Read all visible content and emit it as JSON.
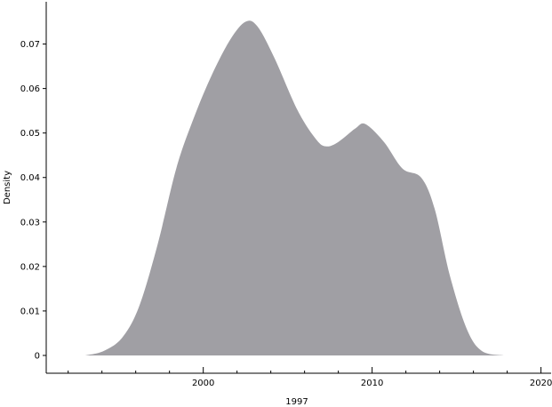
{
  "chart_data": {
    "type": "area",
    "title": "",
    "xlabel": "1997",
    "ylabel": "Density",
    "xlim": [
      1990.7,
      2020.6
    ],
    "ylim": [
      -0.004,
      0.0795
    ],
    "x_ticks": [
      2000,
      2010,
      2020
    ],
    "x_tick_labels": [
      "2000",
      "2010",
      "2020"
    ],
    "y_ticks": [
      0,
      0.01,
      0.02,
      0.03,
      0.04,
      0.05,
      0.06,
      0.07
    ],
    "y_tick_labels": [
      "0",
      "0.01",
      "0.02",
      "0.03",
      "0.04",
      "0.05",
      "0.06",
      "0.07"
    ],
    "grid": false,
    "fill_color": "#a09fa4",
    "series": [
      {
        "x": [
          1993.0,
          1994.1,
          1995.2,
          1996.2,
          1997.3,
          1998.4,
          1999.4,
          2000.5,
          2001.6,
          2002.5,
          2003.2,
          2004.2,
          2005.6,
          2006.7,
          2007.3,
          2008.0,
          2009.0,
          2009.6,
          2010.7,
          2011.8,
          2012.9,
          2013.7,
          2014.6,
          2015.6,
          2016.5,
          2017.8
        ],
        "y": [
          0,
          0.001,
          0.004,
          0.011,
          0.025,
          0.042,
          0.053,
          0.063,
          0.071,
          0.075,
          0.074,
          0.067,
          0.055,
          0.0485,
          0.047,
          0.048,
          0.051,
          0.052,
          0.048,
          0.042,
          0.04,
          0.033,
          0.018,
          0.006,
          0.001,
          0
        ]
      }
    ]
  }
}
